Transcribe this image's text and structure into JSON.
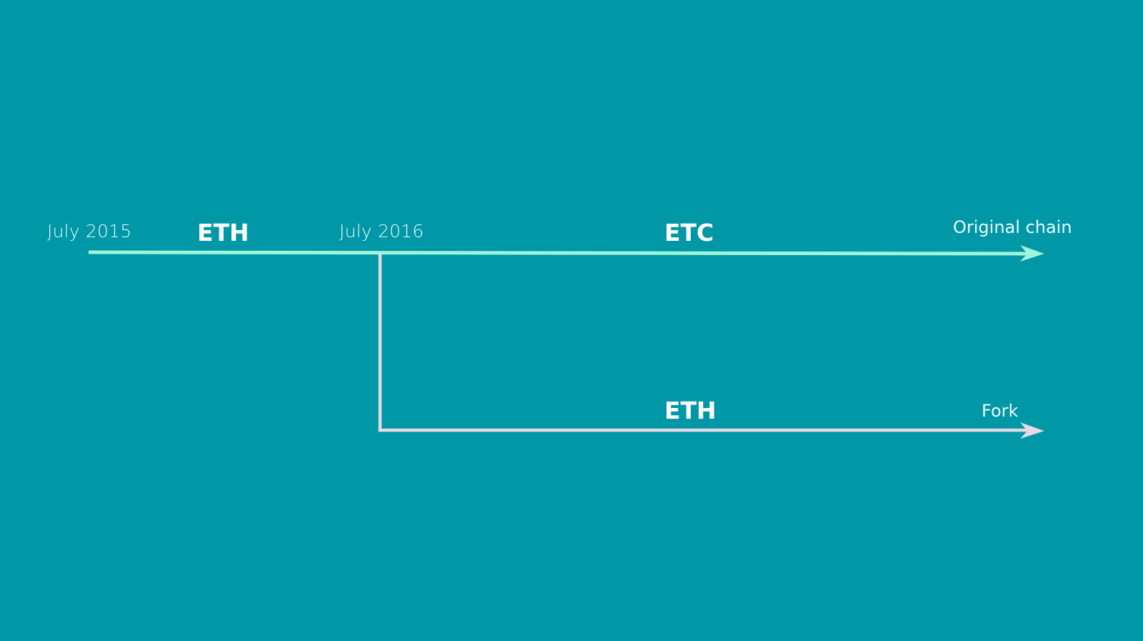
{
  "colors": {
    "background": "#0097a7",
    "original_chain": "#9ff5d8",
    "fork_chain": "#e6d9e3",
    "text": "#ffffff"
  },
  "timeline": {
    "start_date": "July 2015",
    "fork_date": "July 2016",
    "pre_fork_chain": "ETH",
    "original_chain_name": "ETC",
    "original_chain_label": "Original chain",
    "fork_chain_name": "ETH",
    "fork_label": "Fork"
  }
}
